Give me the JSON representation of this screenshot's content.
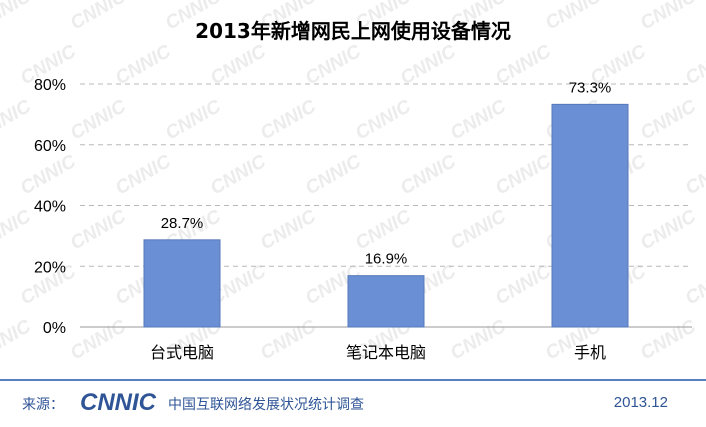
{
  "chart_data": {
    "type": "bar",
    "title": "2013年新增网民上网使用设备情况",
    "categories": [
      "台式电脑",
      "笔记本电脑",
      "手机"
    ],
    "values": [
      28.7,
      16.9,
      73.3
    ],
    "value_labels": [
      "28.7%",
      "16.9%",
      "73.3%"
    ],
    "y_ticks": [
      "0%",
      "20%",
      "40%",
      "60%",
      "80%"
    ],
    "ylim": [
      0,
      80
    ],
    "xlabel": "",
    "ylabel": "",
    "grid": true,
    "bar_color": "#6a8fd4",
    "watermark": "CNNIC"
  },
  "footer": {
    "source_label": "来源：",
    "logo_text": "CNNIC",
    "report_name": "中国互联网络发展状况统计调查",
    "date": "2013.12",
    "accent_color": "#5a7fc0"
  }
}
